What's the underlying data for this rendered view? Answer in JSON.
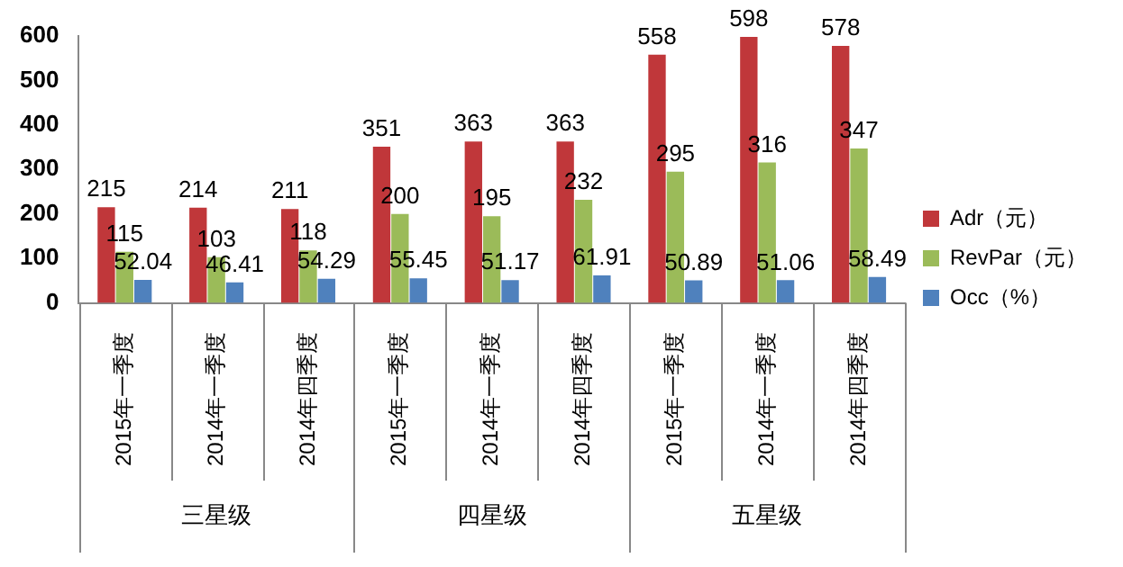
{
  "chart_data": {
    "type": "bar",
    "categories": [
      "2015年一季度",
      "2014年一季度",
      "2014年四季度",
      "2015年一季度",
      "2014年一季度",
      "2014年四季度",
      "2015年一季度",
      "2014年一季度",
      "2014年四季度"
    ],
    "series": [
      {
        "name": "Adr（元）",
        "color": "#c0373a",
        "values": [
          215,
          214,
          211,
          351,
          363,
          363,
          558,
          598,
          578
        ]
      },
      {
        "name": "RevPar（元）",
        "color": "#9bbb59",
        "values": [
          115,
          103,
          118,
          200,
          195,
          232,
          295,
          316,
          347
        ]
      },
      {
        "name": "Occ（%）",
        "color": "#4f81bd",
        "values": [
          52.04,
          46.41,
          54.29,
          55.45,
          51.17,
          61.91,
          50.89,
          51.06,
          58.49
        ]
      }
    ],
    "ylim": [
      0,
      600
    ],
    "yticks": [
      0,
      100,
      200,
      300,
      400,
      500,
      600
    ],
    "annotations": [
      "三星级",
      "四星级",
      "五星级"
    ],
    "data_labels": true,
    "legend": "right"
  }
}
